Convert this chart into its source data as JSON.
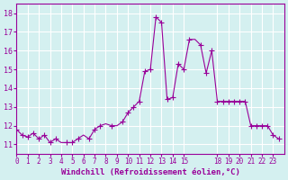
{
  "x": [
    0,
    0.5,
    1,
    1.5,
    2,
    2.5,
    3,
    3.5,
    4,
    4.5,
    5,
    5.5,
    6,
    6.5,
    7,
    7.5,
    8,
    8.5,
    9,
    9.5,
    10,
    10.5,
    11,
    11.5,
    12,
    12.5,
    13,
    13.5,
    14,
    14.5,
    15,
    15.5,
    16,
    16.5,
    17,
    17.5,
    18,
    18.5,
    19,
    19.5,
    20,
    20.5,
    21,
    21.5,
    22,
    22.5,
    23,
    23.5
  ],
  "y": [
    11.8,
    11.5,
    11.4,
    11.6,
    11.3,
    11.5,
    11.1,
    11.3,
    11.1,
    11.1,
    11.1,
    11.3,
    11.5,
    11.3,
    11.8,
    12.0,
    12.1,
    12.0,
    12.0,
    12.2,
    12.7,
    13.0,
    13.3,
    14.9,
    15.0,
    17.8,
    17.5,
    13.4,
    13.5,
    15.3,
    15.0,
    16.6,
    16.6,
    16.3,
    14.8,
    16.0,
    13.3,
    13.3,
    13.3,
    13.3,
    13.3,
    13.3,
    12.0,
    12.0,
    12.0,
    12.0,
    11.5,
    11.3
  ],
  "line_color": "#990099",
  "marker_color": "#990099",
  "bg_color": "#d4f0f0",
  "grid_color": "#ffffff",
  "xlabel": "Windchill (Refroidissement éolien,°C)",
  "xlabel_color": "#990099",
  "tick_color": "#990099",
  "ylim": [
    10.5,
    18.5
  ],
  "xlim": [
    0,
    24
  ],
  "yticks": [
    11,
    12,
    13,
    14,
    15,
    16,
    17,
    18
  ],
  "xticks": [
    0,
    1,
    2,
    3,
    4,
    5,
    6,
    7,
    8,
    9,
    10,
    11,
    12,
    13,
    14,
    15,
    18,
    19,
    20,
    21,
    22,
    23
  ],
  "xtick_labels": [
    "0",
    "1",
    "2",
    "3",
    "4",
    "5",
    "6",
    "7",
    "8",
    "9",
    "10",
    "11",
    "12",
    "13",
    "14",
    "15",
    "18",
    "19",
    "20",
    "21",
    "22",
    "23"
  ]
}
